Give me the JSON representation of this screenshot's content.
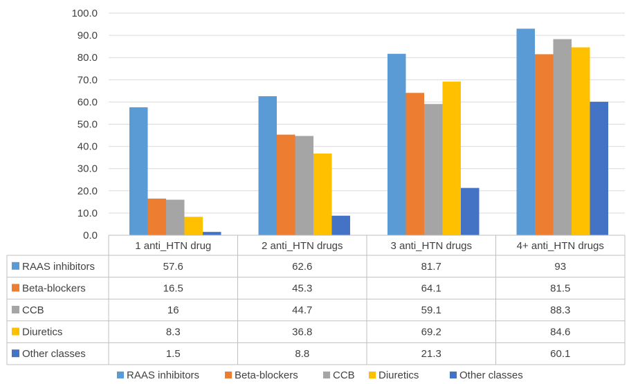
{
  "chart_data": {
    "type": "bar",
    "categories": [
      "1 anti_HTN drug",
      "2 anti_HTN drugs",
      "3 anti_HTN drugs",
      "4+ anti_HTN drugs"
    ],
    "series": [
      {
        "name": "RAAS inhibitors",
        "color": "#5B9BD5",
        "values": [
          57.6,
          62.6,
          81.7,
          93
        ],
        "labels": [
          "57.6",
          "62.6",
          "81.7",
          "93"
        ]
      },
      {
        "name": "Beta-blockers",
        "color": "#ED7D31",
        "values": [
          16.5,
          45.3,
          64.1,
          81.5
        ],
        "labels": [
          "16.5",
          "45.3",
          "64.1",
          "81.5"
        ]
      },
      {
        "name": "CCB",
        "color": "#A5A5A5",
        "values": [
          16,
          44.7,
          59.1,
          88.3
        ],
        "labels": [
          "16",
          "44.7",
          "59.1",
          "88.3"
        ]
      },
      {
        "name": "Diuretics",
        "color": "#FFC000",
        "values": [
          8.3,
          36.8,
          69.2,
          84.6
        ],
        "labels": [
          "8.3",
          "36.8",
          "69.2",
          "84.6"
        ]
      },
      {
        "name": "Other classes",
        "color": "#4472C4",
        "values": [
          1.5,
          8.8,
          21.3,
          60.1
        ],
        "labels": [
          "1.5",
          "8.8",
          "21.3",
          "60.1"
        ]
      }
    ],
    "ylim": [
      0,
      100
    ],
    "yticks": [
      "0.0",
      "10.0",
      "20.0",
      "30.0",
      "40.0",
      "50.0",
      "60.0",
      "70.0",
      "80.0",
      "90.0",
      "100.0"
    ],
    "grid": true,
    "legend_position": "bottom",
    "data_table": true
  }
}
